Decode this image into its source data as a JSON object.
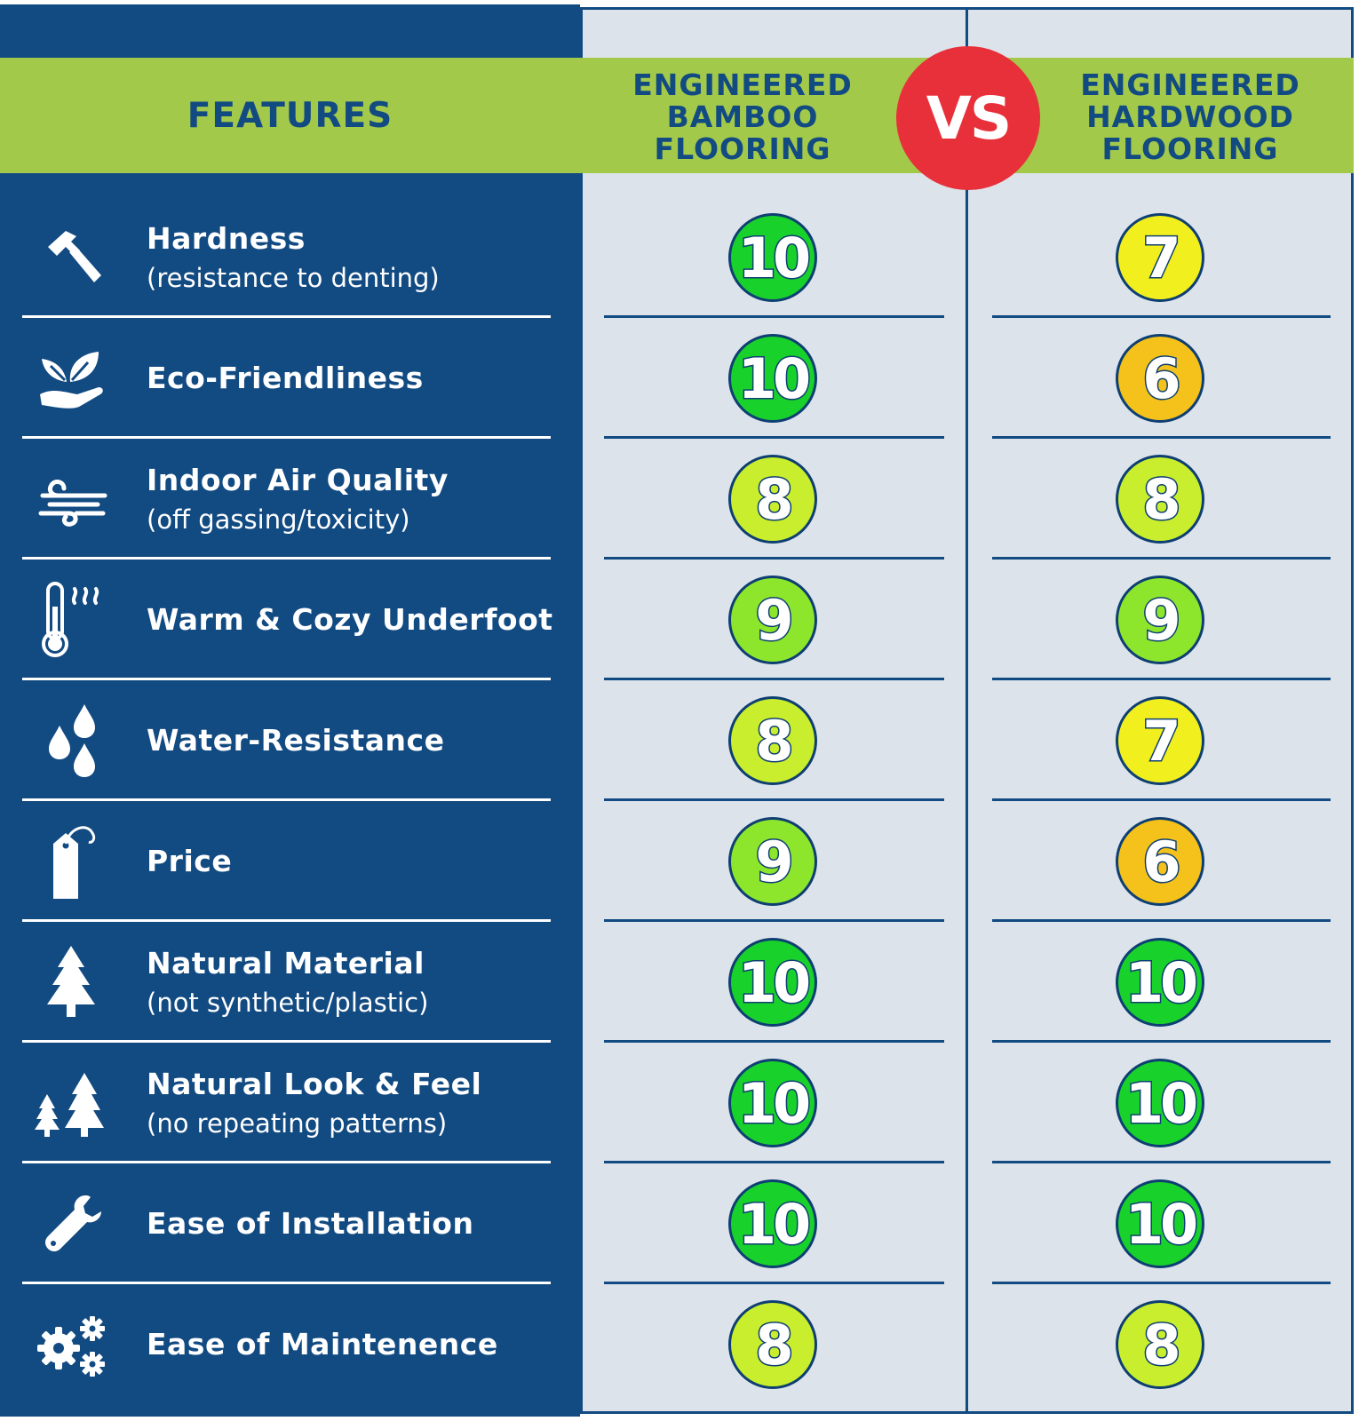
{
  "header": {
    "features": "FEATURES",
    "bamboo": "ENGINEERED\nBAMBOO\nFLOORING",
    "vs": "VS",
    "hardwood": "ENGINEERED\nHARDWOOD\nFLOORING"
  },
  "colors": {
    "navy": "#124a82",
    "header_band": "#a3c94b",
    "vs_badge": "#e8303a",
    "column_bg": "#dde3ea",
    "score_10": "#19d12b",
    "score_9": "#8ee62c",
    "score_8": "#c9ee2d",
    "score_7": "#f1ef1e",
    "score_6": "#f5c21b"
  },
  "rows": [
    {
      "icon": "hammer-icon",
      "name": "Hardness",
      "sub": "(resistance to denting)",
      "bamboo": "10",
      "hardwood": "7"
    },
    {
      "icon": "eco-hand-leaves-icon",
      "name": "Eco-Friendliness",
      "sub": "",
      "bamboo": "10",
      "hardwood": "6"
    },
    {
      "icon": "air-wind-icon",
      "name": "Indoor Air Quality",
      "sub": "(off gassing/toxicity)",
      "bamboo": "8",
      "hardwood": "8"
    },
    {
      "icon": "thermometer-icon",
      "name": "Warm & Cozy Underfoot",
      "sub": "",
      "bamboo": "9",
      "hardwood": "9"
    },
    {
      "icon": "water-drops-icon",
      "name": "Water-Resistance",
      "sub": "",
      "bamboo": "8",
      "hardwood": "7"
    },
    {
      "icon": "price-tag-icon",
      "name": "Price",
      "sub": "",
      "bamboo": "9",
      "hardwood": "6"
    },
    {
      "icon": "pine-tree-icon",
      "name": "Natural Material",
      "sub": "(not synthetic/plastic)",
      "bamboo": "10",
      "hardwood": "10"
    },
    {
      "icon": "two-trees-icon",
      "name": "Natural Look & Feel",
      "sub": "(no repeating patterns)",
      "bamboo": "10",
      "hardwood": "10"
    },
    {
      "icon": "wrench-icon",
      "name": "Ease of Installation",
      "sub": "",
      "bamboo": "10",
      "hardwood": "10"
    },
    {
      "icon": "gears-icon",
      "name": "Ease of Maintenence",
      "sub": "",
      "bamboo": "8",
      "hardwood": "8"
    }
  ]
}
